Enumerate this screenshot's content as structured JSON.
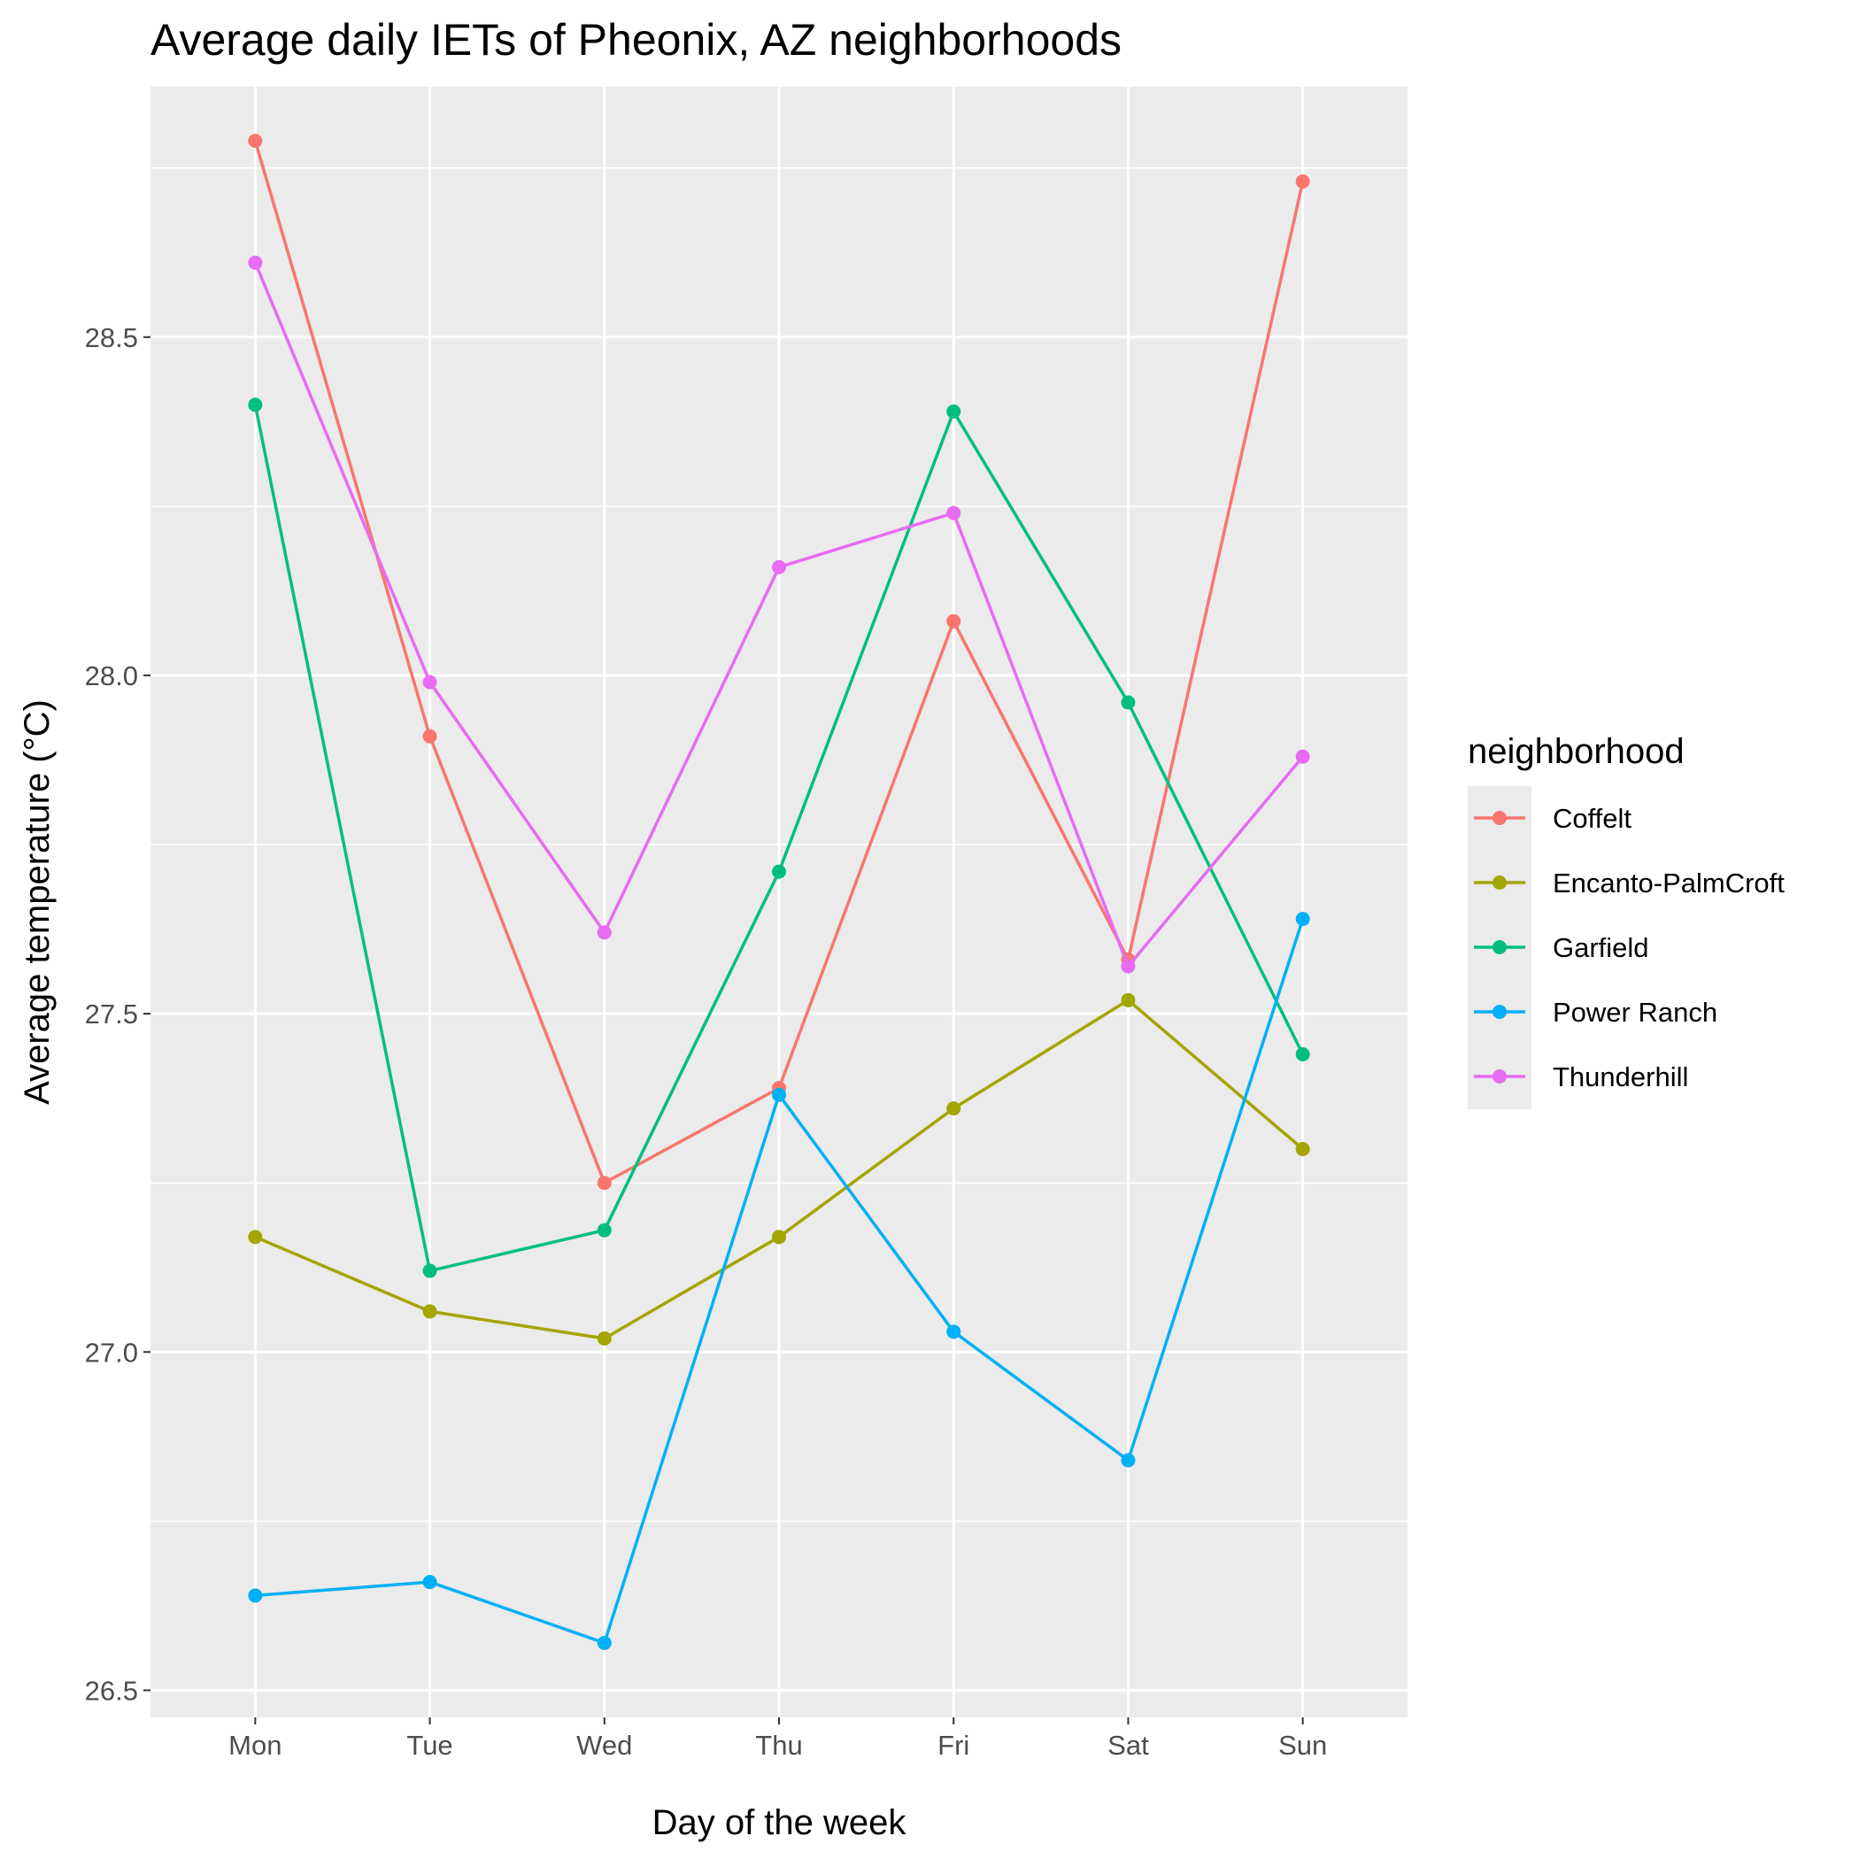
{
  "chart_data": {
    "type": "line",
    "title": "Average daily IETs of Pheonix, AZ neighborhoods",
    "xlabel": "Day of the week",
    "ylabel": "Average temperature (°C)",
    "categories": [
      "Mon",
      "Tue",
      "Wed",
      "Thu",
      "Fri",
      "Sat",
      "Sun"
    ],
    "ylim": [
      26.46,
      28.87
    ],
    "yticks": [
      26.5,
      27.0,
      27.5,
      28.0,
      28.5
    ],
    "ytick_labels": [
      "26.5",
      "27.0",
      "27.5",
      "28.0",
      "28.5"
    ],
    "grid": true,
    "legend": {
      "title": "neighborhood",
      "position": "right"
    },
    "series": [
      {
        "name": "Coffelt",
        "color": "#F8766D",
        "values": [
          28.79,
          27.91,
          27.25,
          27.39,
          28.08,
          27.58,
          28.73
        ]
      },
      {
        "name": "Encanto-PalmCroft",
        "color": "#A3A500",
        "values": [
          27.17,
          27.06,
          27.02,
          27.17,
          27.36,
          27.52,
          27.3
        ]
      },
      {
        "name": "Garfield",
        "color": "#00BF7D",
        "values": [
          28.4,
          27.12,
          27.18,
          27.71,
          28.39,
          27.96,
          27.44
        ]
      },
      {
        "name": "Power Ranch",
        "color": "#00B0F6",
        "values": [
          26.64,
          26.66,
          26.57,
          27.38,
          27.03,
          26.84,
          27.64
        ]
      },
      {
        "name": "Thunderhill",
        "color": "#E76BF3",
        "values": [
          28.61,
          27.99,
          27.62,
          28.16,
          28.24,
          27.57,
          27.88
        ]
      }
    ]
  }
}
